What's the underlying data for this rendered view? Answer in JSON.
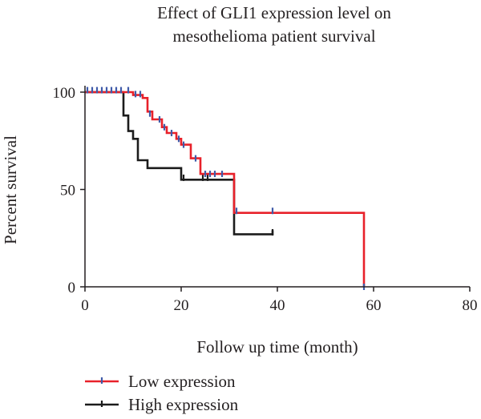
{
  "chart_data": {
    "type": "line",
    "subtype": "kaplan-meier-step",
    "title_lines": [
      "Effect of GLI1 expression level on",
      "mesothelioma patient survival"
    ],
    "xlabel": "Follow up time (month)",
    "ylabel": "Percent survival",
    "xlim": [
      0,
      80
    ],
    "ylim": [
      0,
      100
    ],
    "xticks": [
      "0",
      "20",
      "40",
      "60",
      "80"
    ],
    "xtick_values": [
      0,
      20,
      40,
      60,
      80
    ],
    "yticks": [
      "0",
      "50",
      "100"
    ],
    "ytick_values": [
      0,
      50,
      100
    ],
    "grid": false,
    "legend_position": "bottom-left",
    "series": [
      {
        "name": "Low expression",
        "color": "#e8212a",
        "censor_color": "#3f5ba9",
        "steps": [
          [
            0,
            100
          ],
          [
            10,
            100
          ],
          [
            10,
            98.5
          ],
          [
            12,
            98.5
          ],
          [
            12,
            97
          ],
          [
            13,
            97
          ],
          [
            13,
            90
          ],
          [
            14,
            90
          ],
          [
            14,
            86
          ],
          [
            16,
            86
          ],
          [
            16,
            82
          ],
          [
            17,
            82
          ],
          [
            17,
            79
          ],
          [
            19,
            79
          ],
          [
            19,
            76
          ],
          [
            20,
            76
          ],
          [
            20,
            73
          ],
          [
            22,
            73
          ],
          [
            22,
            66
          ],
          [
            24,
            66
          ],
          [
            24,
            58
          ],
          [
            31,
            58
          ],
          [
            31,
            38
          ],
          [
            58,
            38
          ],
          [
            58,
            0
          ]
        ],
        "censored": [
          [
            0.5,
            101
          ],
          [
            1.5,
            101
          ],
          [
            2.5,
            101
          ],
          [
            3.5,
            101
          ],
          [
            4.5,
            101
          ],
          [
            5.5,
            101
          ],
          [
            6.5,
            101
          ],
          [
            7.5,
            101
          ],
          [
            9,
            101
          ],
          [
            10.5,
            99
          ],
          [
            11.5,
            99
          ],
          [
            13.5,
            89
          ],
          [
            15.5,
            86
          ],
          [
            16.5,
            82
          ],
          [
            18,
            79
          ],
          [
            19.5,
            76
          ],
          [
            20.5,
            73
          ],
          [
            23,
            66
          ],
          [
            25,
            58
          ],
          [
            26,
            58
          ],
          [
            27,
            58
          ],
          [
            28.5,
            58
          ],
          [
            31.5,
            39
          ],
          [
            39,
            39
          ],
          [
            58,
            0
          ]
        ]
      },
      {
        "name": "High expression",
        "color": "#1c1c1c",
        "censor_color": "#1c1c1c",
        "steps": [
          [
            0,
            100
          ],
          [
            8,
            100
          ],
          [
            8,
            88
          ],
          [
            9,
            88
          ],
          [
            9,
            80
          ],
          [
            10,
            80
          ],
          [
            10,
            76
          ],
          [
            11,
            76
          ],
          [
            11,
            65
          ],
          [
            13,
            65
          ],
          [
            13,
            61
          ],
          [
            20,
            61
          ],
          [
            20,
            55
          ],
          [
            31,
            55
          ],
          [
            31,
            27
          ],
          [
            39,
            27
          ],
          [
            39,
            29
          ]
        ],
        "censored": [
          [
            20.5,
            56
          ],
          [
            24.5,
            56
          ],
          [
            25.5,
            56
          ],
          [
            39,
            28
          ]
        ]
      }
    ]
  }
}
